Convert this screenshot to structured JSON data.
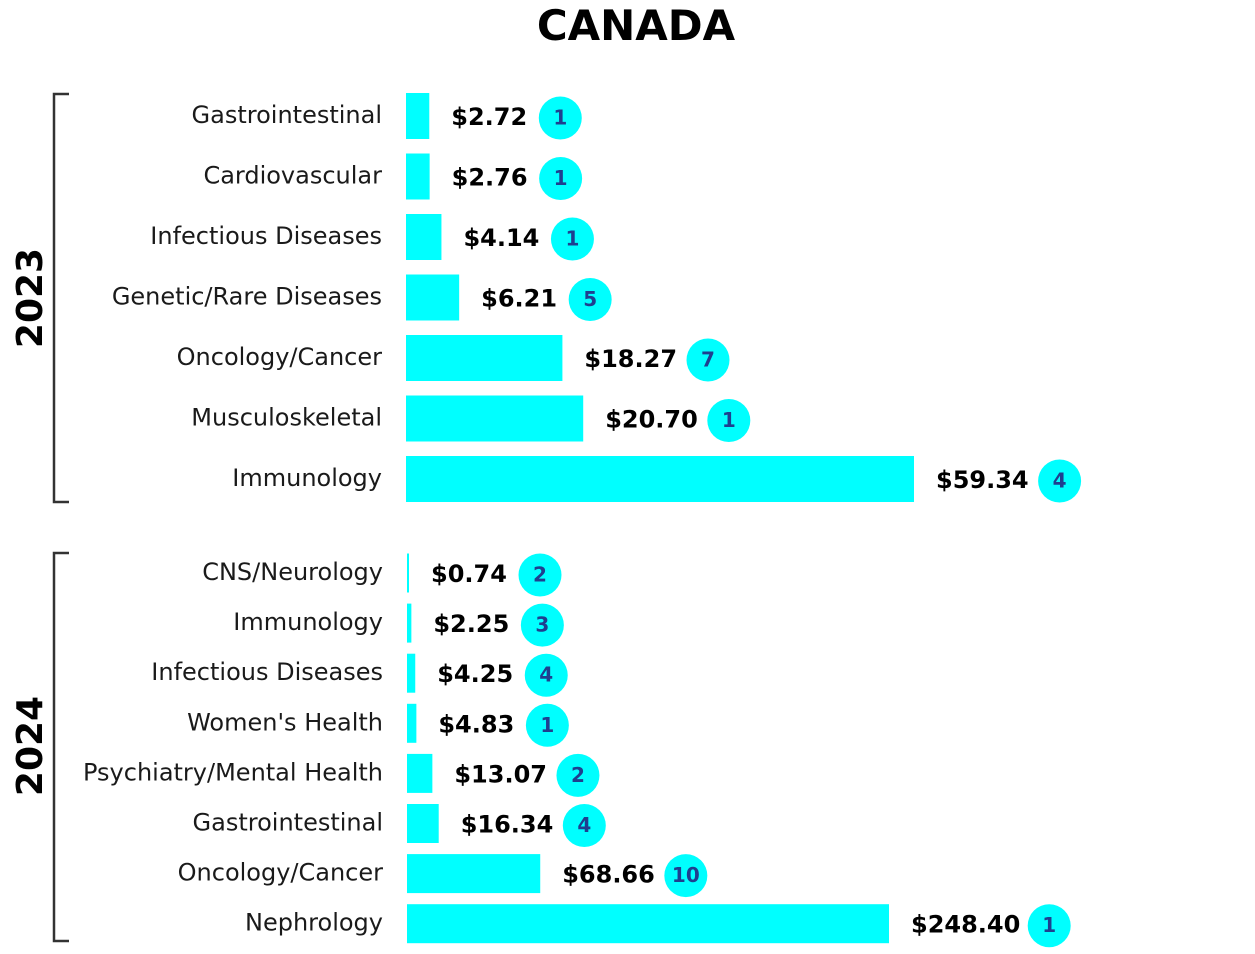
{
  "chart_data": {
    "type": "bar",
    "orientation": "horizontal",
    "title": "CANADA",
    "bar_color": "#00ffff",
    "badge_color": "#00ffff",
    "badge_text_color": "#1f3f8f",
    "value_prefix": "$",
    "groups": [
      {
        "label": "2023",
        "x_max": 59.34,
        "categories": [
          "Gastrointestinal",
          "Cardiovascular",
          "Infectious Diseases",
          "Genetic/Rare Diseases",
          "Oncology/Cancer",
          "Musculoskeletal",
          "Immunology"
        ],
        "values": [
          2.72,
          2.76,
          4.14,
          6.21,
          18.27,
          20.7,
          59.34
        ],
        "value_labels": [
          "$2.72",
          "$2.76",
          "$4.14",
          "$6.21",
          "$18.27",
          "$20.70",
          "$59.34"
        ],
        "counts": [
          "1",
          "1",
          "1",
          "5",
          "7",
          "1",
          "4"
        ]
      },
      {
        "label": "2024",
        "x_max": 248.4,
        "categories": [
          "CNS/Neurology",
          "Immunology",
          "Infectious Diseases",
          "Women's Health",
          "Psychiatry/Mental Health",
          "Gastrointestinal",
          "Oncology/Cancer",
          "Nephrology"
        ],
        "values": [
          0.74,
          2.25,
          4.25,
          4.83,
          13.07,
          16.34,
          68.66,
          248.4
        ],
        "value_labels": [
          "$0.74",
          "$2.25",
          "$4.25",
          "$4.83",
          "$13.07",
          "$16.34",
          "$68.66",
          "$248.40"
        ],
        "counts": [
          "2",
          "3",
          "4",
          "1",
          "2",
          "4",
          "10",
          "1"
        ]
      }
    ]
  }
}
